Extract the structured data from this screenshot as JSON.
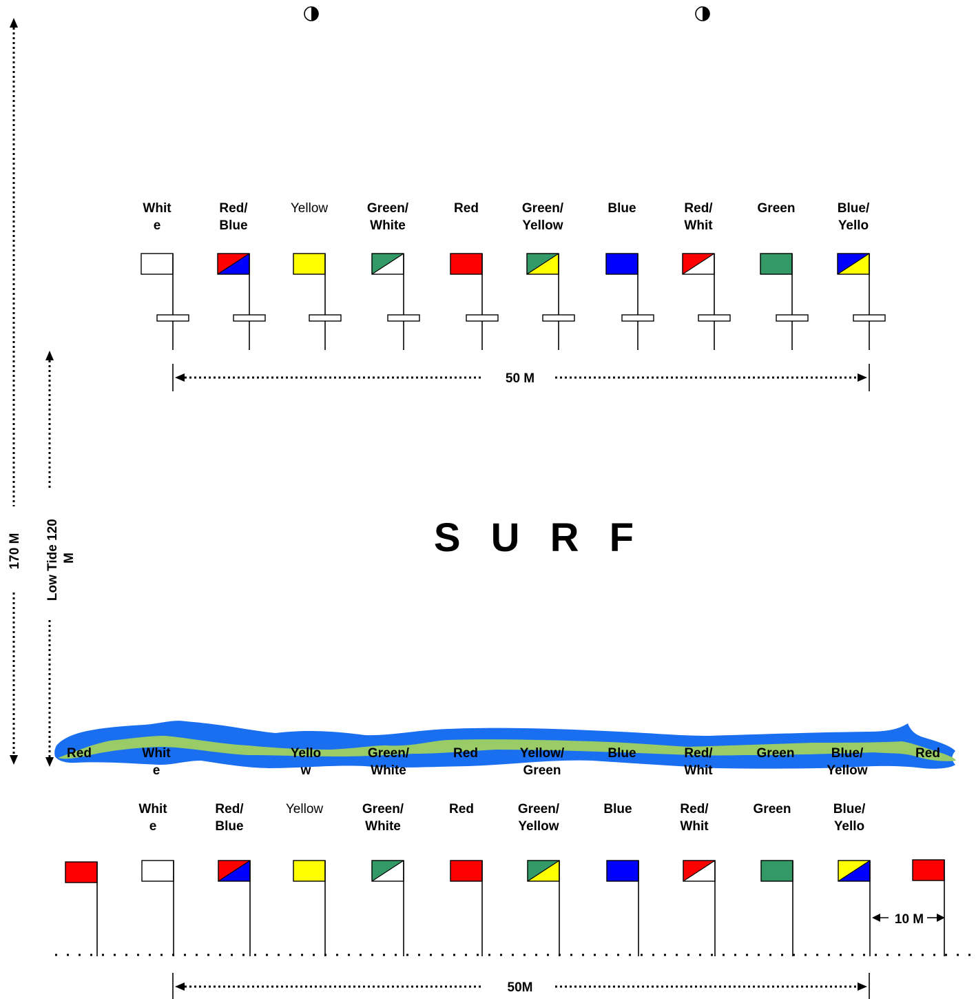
{
  "title": "S U R F",
  "colors": {
    "White": "#ffffff",
    "Red": "#ff0000",
    "Blue": "#0000ff",
    "Yellow": "#ffff00",
    "Green": "#339966",
    "surf_blue": "#1a6ef0",
    "surf_green": "#99cc66"
  },
  "measures": {
    "total_depth": "170 M",
    "low_tide": "Low Tide 120 M",
    "top_span": "50 M",
    "bottom_span": "50M",
    "flag_gap": "10 M"
  },
  "top_row": [
    {
      "label": "Whit\ne",
      "colors": [
        "White"
      ],
      "bold": true
    },
    {
      "label": "Red/\nBlue",
      "colors": [
        "Red",
        "Blue"
      ],
      "bold": true
    },
    {
      "label": "Yellow",
      "colors": [
        "Yellow"
      ],
      "bold": false
    },
    {
      "label": "Green/\nWhite",
      "colors": [
        "Green",
        "White"
      ],
      "bold": true
    },
    {
      "label": "Red",
      "colors": [
        "Red"
      ],
      "bold": true
    },
    {
      "label": "Green/\nYellow",
      "colors": [
        "Green",
        "Yellow"
      ],
      "bold": true
    },
    {
      "label": "Blue",
      "colors": [
        "Blue"
      ],
      "bold": true
    },
    {
      "label": "Red/\nWhit",
      "colors": [
        "Red",
        "White"
      ],
      "bold": true
    },
    {
      "label": "Green",
      "colors": [
        "Green"
      ],
      "bold": true
    },
    {
      "label": "Blue/\nYello",
      "colors": [
        "Blue",
        "Yellow"
      ],
      "bold": true
    }
  ],
  "surf_row": [
    {
      "label": "Red"
    },
    {
      "label": "Whit\ne"
    },
    {
      "label": "Yello\nw"
    },
    {
      "label": "Green/\nWhite"
    },
    {
      "label": "Red"
    },
    {
      "label": "Yellow/\nGreen"
    },
    {
      "label": "Blue"
    },
    {
      "label": "Red/\nWhit"
    },
    {
      "label": "Green"
    },
    {
      "label": "Blue/\nYellow"
    },
    {
      "label": "Red"
    }
  ],
  "bottom_row": [
    {
      "label": "Whit\ne",
      "colors": [
        "White"
      ],
      "bold": true
    },
    {
      "label": "Red/\nBlue",
      "colors": [
        "Red",
        "Blue"
      ],
      "bold": true
    },
    {
      "label": "Yellow",
      "colors": [
        "Yellow"
      ],
      "bold": false
    },
    {
      "label": "Green/\nWhite",
      "colors": [
        "Green",
        "White"
      ],
      "bold": true
    },
    {
      "label": "Red",
      "colors": [
        "Red"
      ],
      "bold": true
    },
    {
      "label": "Green/\nYellow",
      "colors": [
        "Green",
        "Yellow"
      ],
      "bold": true
    },
    {
      "label": "Blue",
      "colors": [
        "Blue"
      ],
      "bold": true
    },
    {
      "label": "Red/\nWhit",
      "colors": [
        "Red",
        "White"
      ],
      "bold": true
    },
    {
      "label": "Green",
      "colors": [
        "Green"
      ],
      "bold": true
    },
    {
      "label": "Blue/\nYello",
      "colors": [
        "Yellow",
        "Blue"
      ],
      "bold": true
    }
  ],
  "end_flags": [
    {
      "colors": [
        "Red"
      ]
    },
    {
      "colors": [
        "Red"
      ]
    }
  ]
}
